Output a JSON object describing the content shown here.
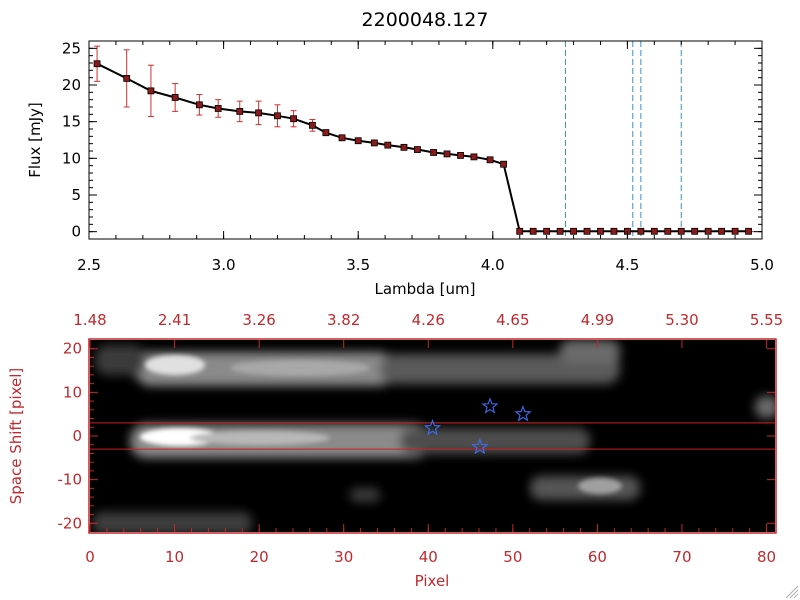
{
  "chart_data": [
    {
      "type": "line",
      "title": "2200048.127",
      "xlabel": "Lambda [um]",
      "ylabel": "Flux [mJy]",
      "xlim": [
        2.5,
        5.0
      ],
      "ylim": [
        -1,
        26
      ],
      "xticks": [
        "2.5",
        "3.0",
        "3.5",
        "4.0",
        "4.5",
        "5.0"
      ],
      "yticks": [
        "0",
        "5",
        "10",
        "15",
        "20",
        "25"
      ],
      "colors": {
        "line": "#000000",
        "marker": "#8b1a1a",
        "errorbar": "#d03030",
        "vline": "#3c8fd0",
        "zero": "#d03030"
      },
      "series": [
        {
          "name": "flux",
          "x": [
            2.53,
            2.64,
            2.73,
            2.82,
            2.91,
            2.98,
            3.06,
            3.13,
            3.2,
            3.26,
            3.33,
            3.38,
            3.44,
            3.5,
            3.56,
            3.61,
            3.67,
            3.72,
            3.78,
            3.83,
            3.88,
            3.93,
            3.99,
            4.04,
            4.1,
            4.15,
            4.2,
            4.25,
            4.3,
            4.35,
            4.4,
            4.45,
            4.5,
            4.55,
            4.6,
            4.65,
            4.7,
            4.75,
            4.8,
            4.85,
            4.9,
            4.95
          ],
          "y": [
            22.9,
            20.9,
            19.2,
            18.3,
            17.3,
            16.8,
            16.4,
            16.2,
            15.8,
            15.4,
            14.5,
            13.5,
            12.8,
            12.4,
            12.1,
            11.8,
            11.5,
            11.2,
            10.8,
            10.6,
            10.4,
            10.2,
            9.8,
            9.2,
            0.05,
            0.05,
            0.05,
            0.05,
            0.05,
            0.05,
            0.05,
            0.05,
            0.05,
            0.05,
            0.05,
            0.05,
            0.05,
            0.05,
            0.05,
            0.05,
            0.05,
            0.05
          ],
          "yerr": [
            2.4,
            3.9,
            3.5,
            1.9,
            1.4,
            1.2,
            1.4,
            1.6,
            1.5,
            1.1,
            0.8,
            0.4,
            0.3,
            0.3,
            0.2,
            0.2,
            0.2,
            0.2,
            0.2,
            0.2,
            0.2,
            0.2,
            0.2,
            0.2,
            0,
            0,
            0,
            0,
            0,
            0,
            0,
            0,
            0,
            0,
            0,
            0,
            0,
            0,
            0,
            0,
            0,
            0
          ]
        }
      ],
      "vlines": [
        4.27,
        4.52,
        4.55,
        4.7
      ]
    },
    {
      "type": "heatmap",
      "xlabel": "Pixel",
      "ylabel": "Space Shift [pixel]",
      "xlim": [
        0,
        81
      ],
      "ylim": [
        -22,
        22
      ],
      "xticks": [
        "0",
        "10",
        "20",
        "30",
        "40",
        "50",
        "60",
        "70",
        "80"
      ],
      "yticks": [
        "-20",
        "-10",
        "0",
        "10",
        "20"
      ],
      "top_ticks": [
        "1.48",
        "2.41",
        "3.26",
        "3.82",
        "4.26",
        "4.65",
        "4.99",
        "5.30",
        "5.55"
      ],
      "hlines": [
        3,
        -3
      ],
      "stars": [
        {
          "x": 40.5,
          "y": 1.8
        },
        {
          "x": 47.3,
          "y": 6.8
        },
        {
          "x": 51.2,
          "y": 5.0
        },
        {
          "x": 46.1,
          "y": -2.5
        }
      ],
      "colors": {
        "frame": "#c0282d",
        "hline": "#d02020",
        "star": "#3c6ef0",
        "background": "#000000"
      }
    }
  ]
}
